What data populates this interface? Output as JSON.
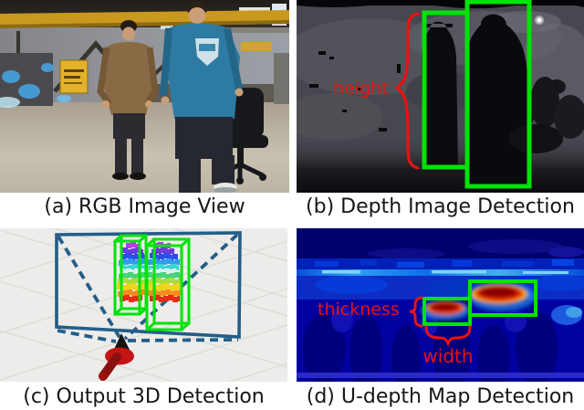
{
  "figure": {
    "captions": {
      "a": "(a) RGB Image View",
      "b": "(b) Depth Image Detection",
      "c": "(c) Output 3D Detection",
      "d": "(d) U-depth Map Detection"
    },
    "annotations": {
      "height": "height",
      "thickness": "thickness",
      "width": "width"
    },
    "colors": {
      "bounding_box_green": "#00e308",
      "annotation_red": "#e81310",
      "frustum_blue": "#235e88",
      "caption_text": "#161616",
      "depth_background": "#47474f",
      "udepth_background": "#0101a0",
      "viewport_background": "#edecea"
    },
    "pointcloud_height_colormap": [
      "#b43ce8",
      "#6a3ce0",
      "#2a50e8",
      "#2f9ef2",
      "#37d8d4",
      "#d9f0ee",
      "#49d37a",
      "#a8dc3c",
      "#ecd51f",
      "#f68c1d",
      "#e62c12"
    ]
  }
}
